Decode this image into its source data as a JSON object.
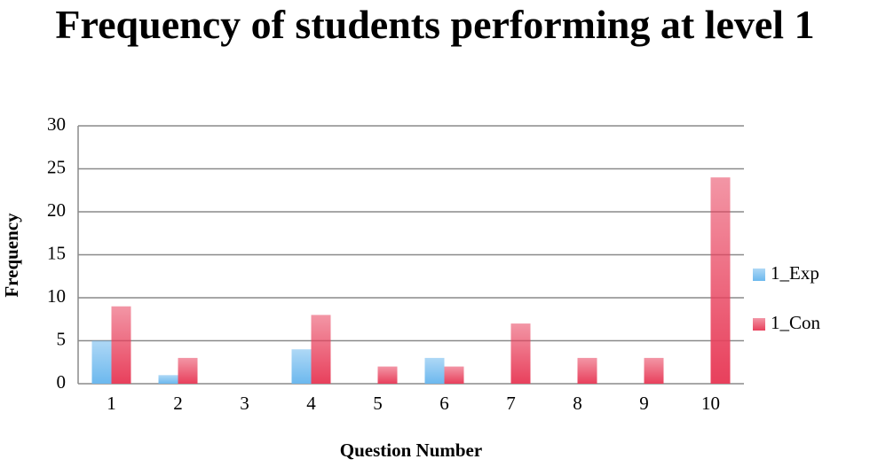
{
  "chart_data": {
    "type": "bar",
    "title": "Frequency of students performing at level 1",
    "x_label": "Question Number",
    "y_label": "Frequency",
    "categories": [
      "1",
      "2",
      "3",
      "4",
      "5",
      "6",
      "7",
      "8",
      "9",
      "10"
    ],
    "series": [
      {
        "name": "1_Exp",
        "color": "#6cb8ee",
        "values": [
          5,
          1,
          0,
          4,
          0,
          3,
          0,
          0,
          0,
          0
        ]
      },
      {
        "name": "1_Con",
        "color": "#e8405c",
        "values": [
          9,
          3,
          0,
          8,
          2,
          2,
          7,
          3,
          3,
          24
        ]
      }
    ],
    "ylim": [
      0,
      30
    ],
    "yticks": [
      0,
      5,
      10,
      15,
      20,
      25,
      30
    ],
    "grid": true,
    "legend": "right"
  }
}
